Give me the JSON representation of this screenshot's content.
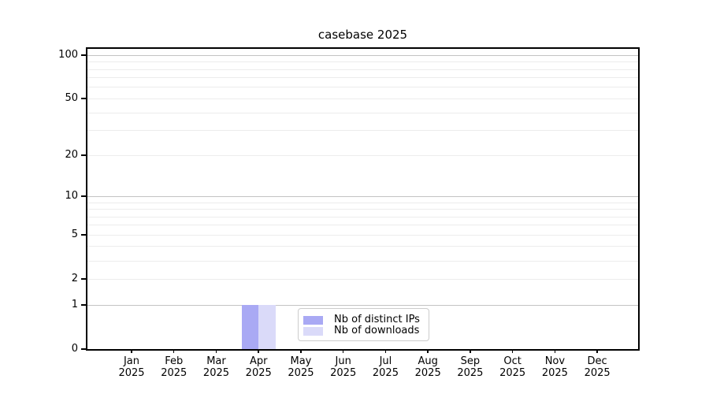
{
  "figure": {
    "title": "casebase 2025"
  },
  "chart_data": {
    "type": "bar",
    "title": "casebase 2025",
    "categories": [
      "Jan 2025",
      "Feb 2025",
      "Mar 2025",
      "Apr 2025",
      "May 2025",
      "Jun 2025",
      "Jul 2025",
      "Aug 2025",
      "Sep 2025",
      "Oct 2025",
      "Nov 2025",
      "Dec 2025"
    ],
    "series": [
      {
        "name": "Nb of distinct IPs",
        "color": "#a9a9f4",
        "values": [
          0,
          0,
          0,
          1,
          0,
          0,
          0,
          0,
          0,
          0,
          0,
          0
        ]
      },
      {
        "name": "Nb of downloads",
        "color": "#dadaf9",
        "values": [
          0,
          0,
          0,
          1,
          0,
          0,
          0,
          0,
          0,
          0,
          0,
          0
        ]
      }
    ],
    "xlabel": "",
    "ylabel": "",
    "y_axis": {
      "scale": "log1p",
      "tick_values": [
        0,
        1,
        2,
        5,
        10,
        20,
        50,
        100
      ],
      "major_gridlines": [
        1,
        10,
        100
      ],
      "minor_gridlines": [
        2,
        3,
        4,
        5,
        6,
        7,
        8,
        9,
        20,
        30,
        40,
        50,
        60,
        70,
        80,
        90
      ],
      "ylim": [
        0,
        112
      ]
    },
    "legend": {
      "position": "bottom-center-inside",
      "entries": [
        "Nb of distinct IPs",
        "Nb of downloads"
      ]
    },
    "colors": {
      "grid_major": "#c3c3c3",
      "grid_minor": "#ececec",
      "axis": "#000000",
      "text": "#000000",
      "background": "#ffffff",
      "legend_border": "#cccccc"
    }
  }
}
